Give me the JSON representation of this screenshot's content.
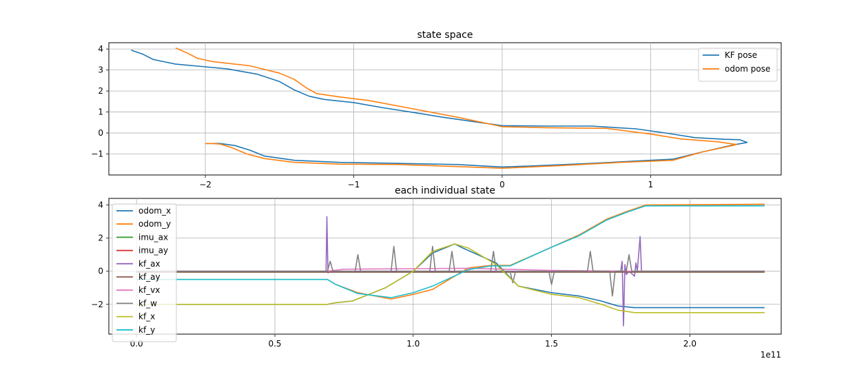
{
  "chart_data": [
    {
      "type": "line",
      "title": "state space",
      "xlabel": "",
      "ylabel": "",
      "xlim": [
        -2.65,
        1.88
      ],
      "ylim": [
        -2.0,
        4.3
      ],
      "xticks": [
        -2,
        -1,
        0,
        1
      ],
      "xtick_labels": [
        "−2",
        "−1",
        "0",
        "1"
      ],
      "yticks": [
        -1,
        0,
        1,
        2,
        3,
        4
      ],
      "ytick_labels": [
        "−1",
        "0",
        "1",
        "2",
        "3",
        "4"
      ],
      "grid": true,
      "legend_position": "top-right",
      "series": [
        {
          "name": "KF pose",
          "color": "#1f77b4",
          "points": [
            [
              -2.5,
              3.95
            ],
            [
              -2.42,
              3.75
            ],
            [
              -2.35,
              3.5
            ],
            [
              -2.2,
              3.28
            ],
            [
              -2.0,
              3.15
            ],
            [
              -1.85,
              3.05
            ],
            [
              -1.65,
              2.8
            ],
            [
              -1.5,
              2.45
            ],
            [
              -1.4,
              2.05
            ],
            [
              -1.3,
              1.75
            ],
            [
              -1.2,
              1.6
            ],
            [
              -1.0,
              1.45
            ],
            [
              -0.8,
              1.2
            ],
            [
              -0.6,
              0.98
            ],
            [
              -0.4,
              0.75
            ],
            [
              -0.2,
              0.55
            ],
            [
              0.0,
              0.35
            ],
            [
              0.3,
              0.33
            ],
            [
              0.6,
              0.33
            ],
            [
              0.9,
              0.2
            ],
            [
              1.1,
              0.0
            ],
            [
              1.3,
              -0.22
            ],
            [
              1.5,
              -0.3
            ],
            [
              1.6,
              -0.32
            ],
            [
              1.65,
              -0.45
            ],
            [
              1.55,
              -0.58
            ],
            [
              1.35,
              -0.9
            ],
            [
              1.15,
              -1.25
            ],
            [
              1.0,
              -1.3
            ],
            [
              0.6,
              -1.45
            ],
            [
              0.2,
              -1.57
            ],
            [
              0.0,
              -1.62
            ],
            [
              -0.3,
              -1.5
            ],
            [
              -0.7,
              -1.45
            ],
            [
              -1.1,
              -1.4
            ],
            [
              -1.4,
              -1.3
            ],
            [
              -1.6,
              -1.1
            ],
            [
              -1.7,
              -0.82
            ],
            [
              -1.8,
              -0.6
            ],
            [
              -1.9,
              -0.5
            ],
            [
              -2.0,
              -0.5
            ]
          ]
        },
        {
          "name": "odom pose",
          "color": "#ff7f0e",
          "points": [
            [
              -2.2,
              4.05
            ],
            [
              -2.12,
              3.8
            ],
            [
              -2.05,
              3.55
            ],
            [
              -1.95,
              3.4
            ],
            [
              -1.7,
              3.2
            ],
            [
              -1.5,
              2.85
            ],
            [
              -1.4,
              2.55
            ],
            [
              -1.32,
              2.15
            ],
            [
              -1.25,
              1.88
            ],
            [
              -1.1,
              1.72
            ],
            [
              -0.9,
              1.55
            ],
            [
              -0.6,
              1.15
            ],
            [
              -0.3,
              0.75
            ],
            [
              0.0,
              0.3
            ],
            [
              0.3,
              0.25
            ],
            [
              0.7,
              0.22
            ],
            [
              1.0,
              -0.05
            ],
            [
              1.2,
              -0.28
            ],
            [
              1.45,
              -0.42
            ],
            [
              1.58,
              -0.55
            ],
            [
              1.55,
              -0.6
            ],
            [
              1.35,
              -0.9
            ],
            [
              1.15,
              -1.3
            ],
            [
              0.8,
              -1.4
            ],
            [
              0.4,
              -1.55
            ],
            [
              0.0,
              -1.68
            ],
            [
              -0.3,
              -1.6
            ],
            [
              -0.7,
              -1.5
            ],
            [
              -1.1,
              -1.48
            ],
            [
              -1.4,
              -1.4
            ],
            [
              -1.6,
              -1.22
            ],
            [
              -1.72,
              -1.0
            ],
            [
              -1.82,
              -0.7
            ],
            [
              -1.9,
              -0.53
            ],
            [
              -1.95,
              -0.5
            ],
            [
              -2.0,
              -0.5
            ]
          ]
        }
      ]
    },
    {
      "type": "line",
      "title": "each individual state",
      "xlabel": "",
      "ylabel": "",
      "xlim": [
        -0.1,
        2.33
      ],
      "ylim": [
        -3.8,
        4.4
      ],
      "x_offset_label": "1e11",
      "xticks": [
        0.0,
        0.5,
        1.0,
        1.5,
        2.0
      ],
      "xtick_labels": [
        "0.0",
        "0.5",
        "1.0",
        "1.5",
        "2.0"
      ],
      "yticks": [
        -2,
        0,
        2,
        4
      ],
      "ytick_labels": [
        "−2",
        "0",
        "2",
        "4"
      ],
      "grid": true,
      "legend_position": "upper-left",
      "series": [
        {
          "name": "odom_x",
          "color": "#1f77b4",
          "points": [
            [
              0,
              -2.0
            ],
            [
              0.69,
              -2.0
            ],
            [
              0.72,
              -1.9
            ],
            [
              0.78,
              -1.8
            ],
            [
              0.9,
              -1.0
            ],
            [
              1.0,
              0.0
            ],
            [
              1.07,
              1.1
            ],
            [
              1.15,
              1.65
            ],
            [
              1.18,
              1.4
            ],
            [
              1.3,
              0.5
            ],
            [
              1.38,
              -0.9
            ],
            [
              1.5,
              -1.3
            ],
            [
              1.6,
              -1.5
            ],
            [
              1.68,
              -1.8
            ],
            [
              1.74,
              -2.1
            ],
            [
              1.8,
              -2.2
            ],
            [
              2.27,
              -2.2
            ]
          ]
        },
        {
          "name": "odom_y",
          "color": "#ff7f0e",
          "points": [
            [
              0,
              -0.5
            ],
            [
              0.69,
              -0.5
            ],
            [
              0.72,
              -0.8
            ],
            [
              0.8,
              -1.3
            ],
            [
              0.92,
              -1.68
            ],
            [
              1.0,
              -1.4
            ],
            [
              1.07,
              -1.1
            ],
            [
              1.2,
              0.2
            ],
            [
              1.28,
              0.35
            ],
            [
              1.35,
              0.35
            ],
            [
              1.5,
              1.45
            ],
            [
              1.6,
              2.2
            ],
            [
              1.7,
              3.15
            ],
            [
              1.77,
              3.6
            ],
            [
              1.84,
              4.0
            ],
            [
              2.27,
              4.05
            ]
          ]
        },
        {
          "name": "imu_ax",
          "color": "#2ca02c",
          "points": [
            [
              0,
              -0.05
            ],
            [
              2.27,
              -0.05
            ]
          ]
        },
        {
          "name": "imu_ay",
          "color": "#d62728",
          "points": [
            [
              0,
              -0.02
            ],
            [
              2.27,
              -0.02
            ]
          ]
        },
        {
          "name": "kf_ax",
          "color": "#9467bd",
          "points": [
            [
              0,
              0.0
            ],
            [
              0.685,
              0.0
            ],
            [
              0.688,
              3.3
            ],
            [
              0.692,
              -0.1
            ],
            [
              0.7,
              0.0
            ],
            [
              1.75,
              0.0
            ],
            [
              1.755,
              0.6
            ],
            [
              1.76,
              -3.3
            ],
            [
              1.765,
              0.4
            ],
            [
              1.77,
              -0.2
            ],
            [
              1.78,
              0.0
            ],
            [
              1.8,
              -0.3
            ],
            [
              1.805,
              0.5
            ],
            [
              1.81,
              0.0
            ],
            [
              1.82,
              2.1
            ],
            [
              1.825,
              0.0
            ],
            [
              2.27,
              0.0
            ]
          ]
        },
        {
          "name": "kf_ay",
          "color": "#8c564b",
          "points": [
            [
              0,
              -0.05
            ],
            [
              2.27,
              -0.05
            ]
          ]
        },
        {
          "name": "kf_vx",
          "color": "#e377c2",
          "points": [
            [
              0,
              0.0
            ],
            [
              0.69,
              0.0
            ],
            [
              0.75,
              0.12
            ],
            [
              1.2,
              0.18
            ],
            [
              1.5,
              0.05
            ],
            [
              1.8,
              0.0
            ],
            [
              2.27,
              0.0
            ]
          ]
        },
        {
          "name": "kf_w",
          "color": "#7f7f7f",
          "points": [
            [
              0,
              0.0
            ],
            [
              0.69,
              0.0
            ],
            [
              0.7,
              0.6
            ],
            [
              0.71,
              0.0
            ],
            [
              0.79,
              0.0
            ],
            [
              0.8,
              1.0
            ],
            [
              0.81,
              0.0
            ],
            [
              0.92,
              0.0
            ],
            [
              0.93,
              1.5
            ],
            [
              0.94,
              0.0
            ],
            [
              1.06,
              0.0
            ],
            [
              1.07,
              1.5
            ],
            [
              1.08,
              0.0
            ],
            [
              1.13,
              0.0
            ],
            [
              1.14,
              1.2
            ],
            [
              1.15,
              0.0
            ],
            [
              1.28,
              0.0
            ],
            [
              1.29,
              1.2
            ],
            [
              1.3,
              0.0
            ],
            [
              1.35,
              0.0
            ],
            [
              1.36,
              -0.7
            ],
            [
              1.37,
              0.0
            ],
            [
              1.49,
              0.0
            ],
            [
              1.5,
              -0.8
            ],
            [
              1.51,
              0.0
            ],
            [
              1.63,
              0.0
            ],
            [
              1.64,
              1.2
            ],
            [
              1.65,
              0.0
            ],
            [
              1.71,
              0.0
            ],
            [
              1.72,
              -1.5
            ],
            [
              1.73,
              0.0
            ],
            [
              1.77,
              0.0
            ],
            [
              1.78,
              1.0
            ],
            [
              1.79,
              0.0
            ],
            [
              2.27,
              0.0
            ]
          ]
        },
        {
          "name": "kf_x",
          "color": "#bcbd22",
          "points": [
            [
              0,
              -2.0
            ],
            [
              0.69,
              -2.0
            ],
            [
              0.72,
              -1.9
            ],
            [
              0.78,
              -1.8
            ],
            [
              0.9,
              -1.0
            ],
            [
              1.0,
              0.0
            ],
            [
              1.07,
              1.2
            ],
            [
              1.15,
              1.65
            ],
            [
              1.2,
              1.4
            ],
            [
              1.3,
              0.4
            ],
            [
              1.38,
              -0.9
            ],
            [
              1.5,
              -1.4
            ],
            [
              1.6,
              -1.6
            ],
            [
              1.68,
              -2.0
            ],
            [
              1.74,
              -2.35
            ],
            [
              1.8,
              -2.5
            ],
            [
              2.27,
              -2.5
            ]
          ]
        },
        {
          "name": "kf_y",
          "color": "#17becf",
          "points": [
            [
              0,
              -0.5
            ],
            [
              0.69,
              -0.5
            ],
            [
              0.72,
              -0.8
            ],
            [
              0.8,
              -1.35
            ],
            [
              0.92,
              -1.6
            ],
            [
              1.0,
              -1.3
            ],
            [
              1.07,
              -0.9
            ],
            [
              1.2,
              0.1
            ],
            [
              1.28,
              0.32
            ],
            [
              1.35,
              0.32
            ],
            [
              1.5,
              1.45
            ],
            [
              1.6,
              2.15
            ],
            [
              1.7,
              3.1
            ],
            [
              1.77,
              3.55
            ],
            [
              1.84,
              3.95
            ],
            [
              2.27,
              3.95
            ]
          ]
        }
      ]
    }
  ]
}
